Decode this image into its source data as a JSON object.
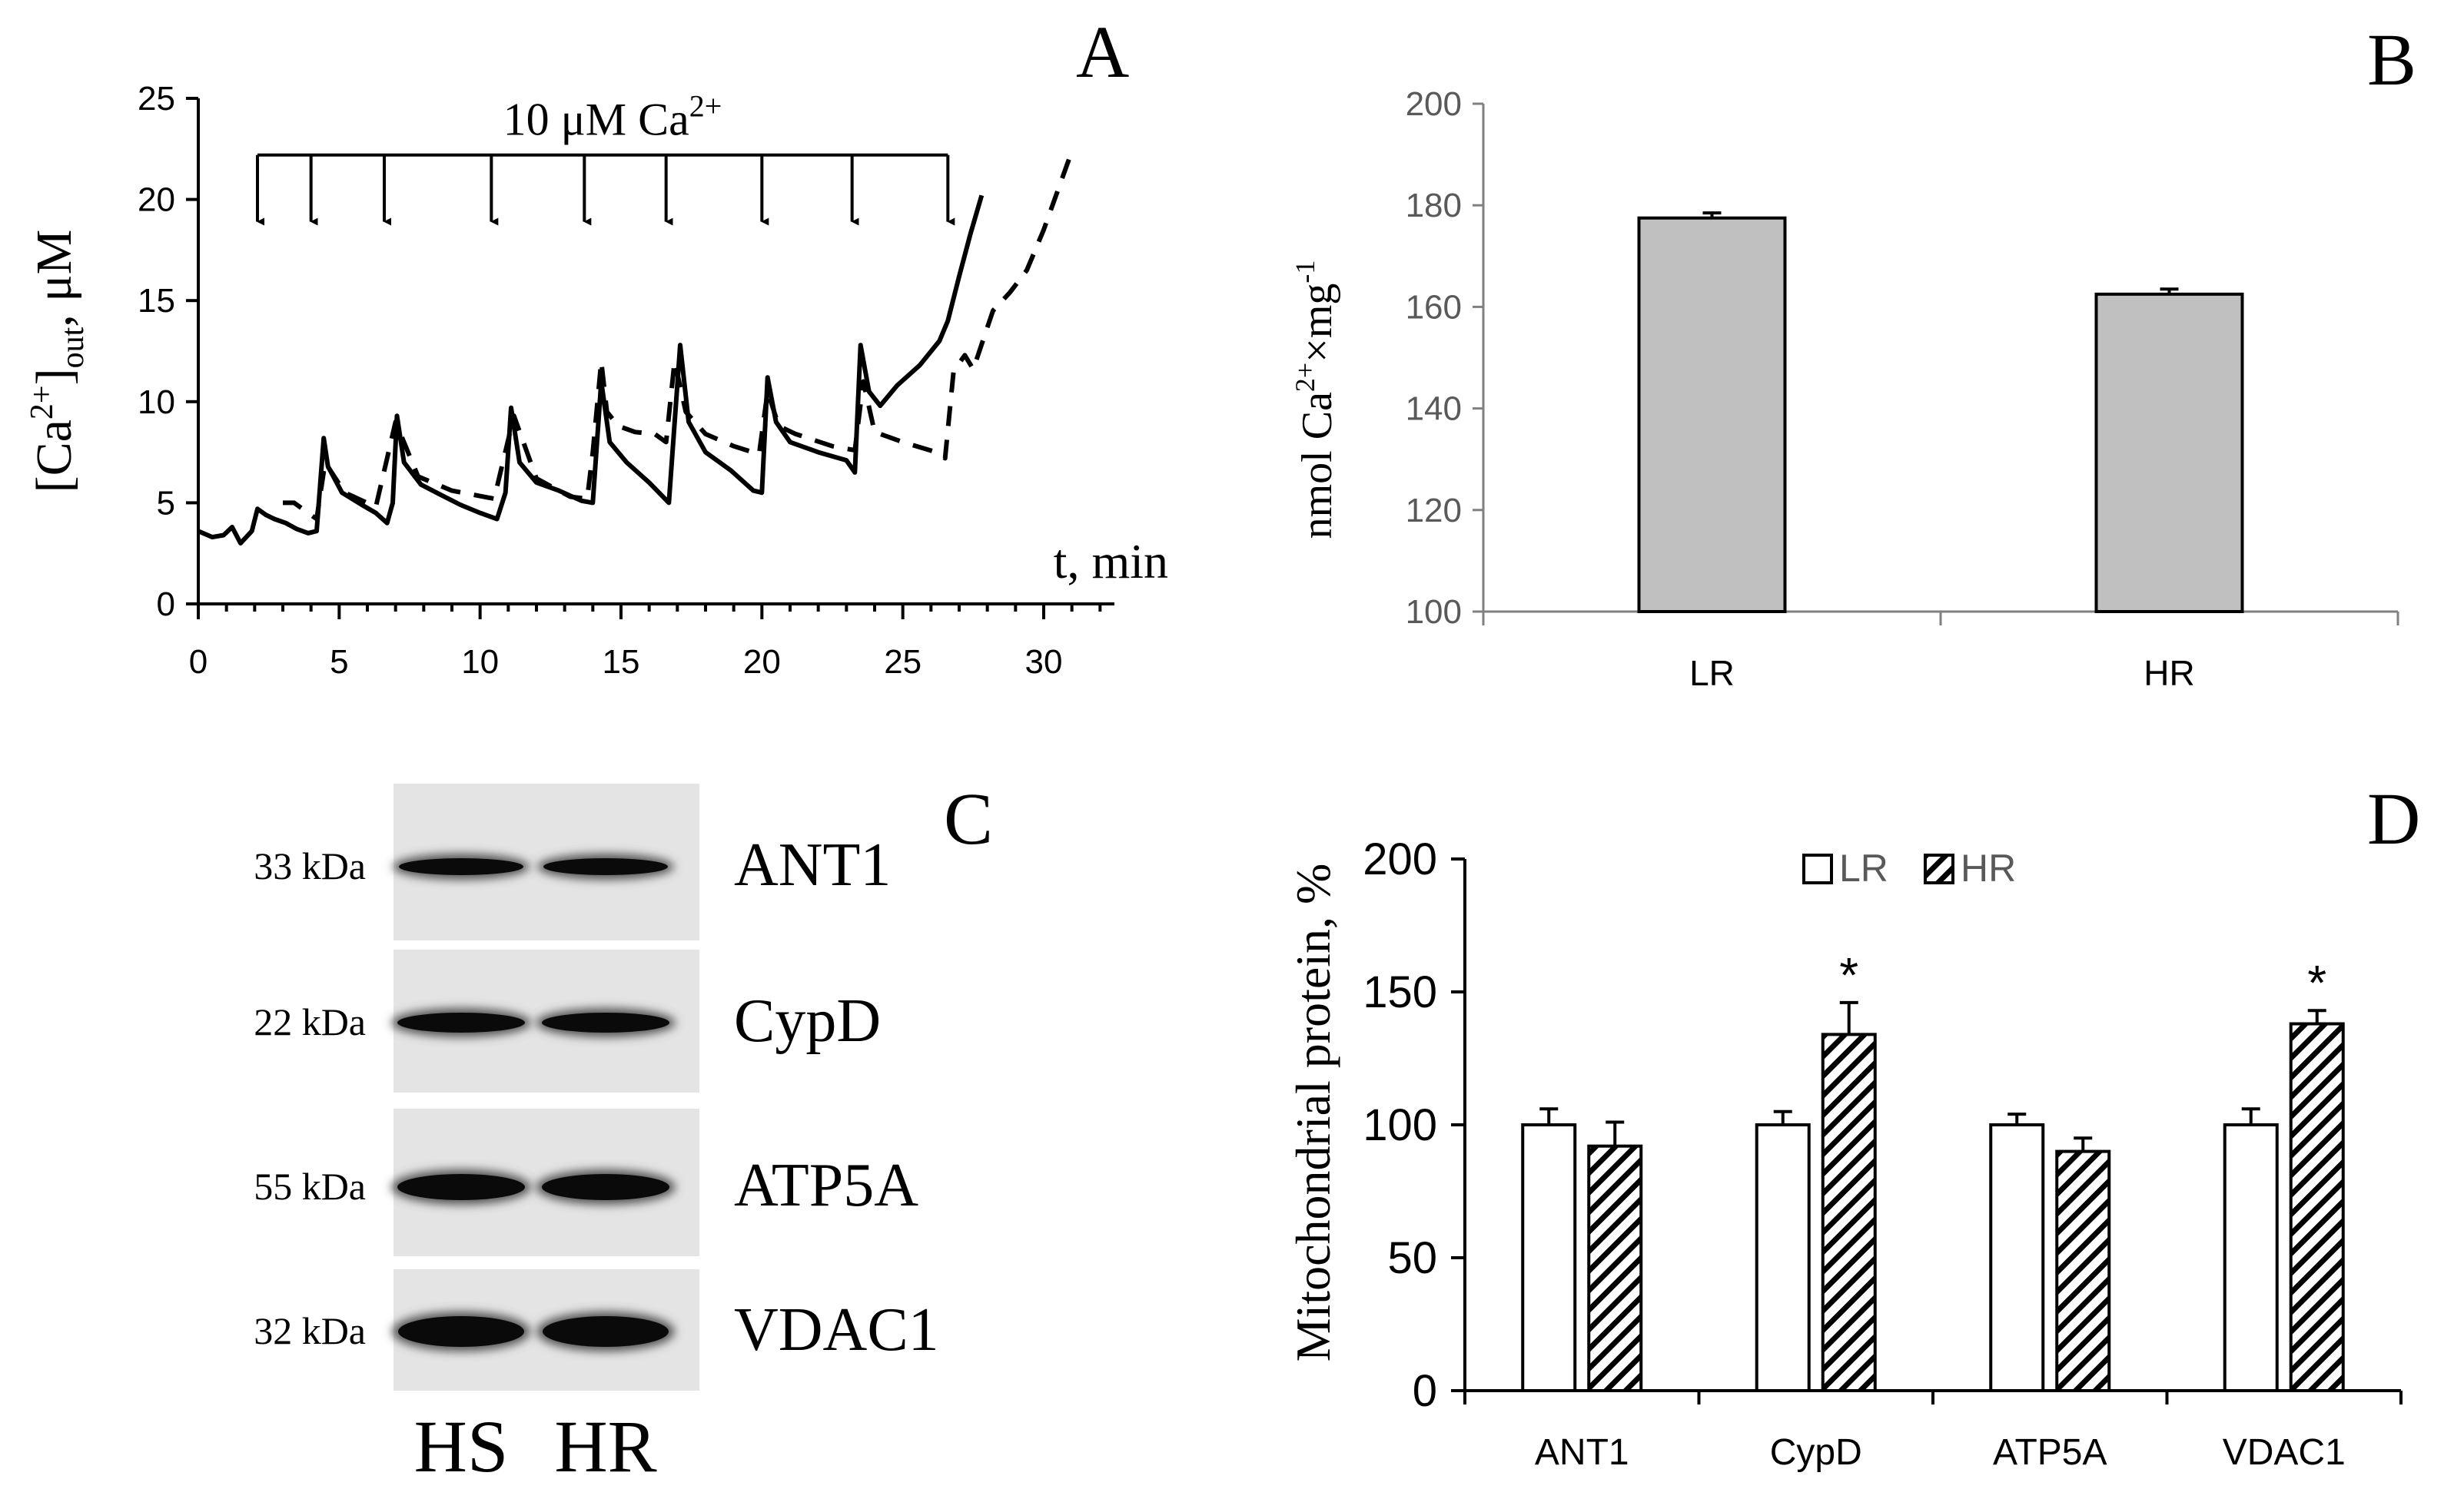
{
  "chart_data": [
    {
      "panel": "A",
      "type": "line",
      "title": "",
      "xlabel": "t, min",
      "ylabel_main": "[Ca",
      "ylabel_sup": "2+",
      "ylabel_close": "]",
      "ylabel_sub": "out",
      "ylabel_unit": ", μM",
      "xlim": [
        0,
        32
      ],
      "ylim": [
        0,
        25
      ],
      "x_ticks": [
        "0",
        "5",
        "10",
        "15",
        "20",
        "25",
        "30"
      ],
      "x_tick_values": [
        0,
        5,
        10,
        15,
        20,
        25,
        30
      ],
      "y_ticks": [
        "0",
        "5",
        "10",
        "15",
        "20",
        "25"
      ],
      "y_tick_values": [
        0,
        5,
        10,
        15,
        20,
        25
      ],
      "annotation": {
        "text": "10 μM Ca",
        "sup": "2+",
        "arrow_times_min": [
          2.1,
          4.0,
          6.6,
          10.4,
          13.7,
          16.6,
          20.0,
          23.2,
          26.6
        ]
      },
      "series": [
        {
          "name": "solid",
          "style": "solid",
          "points": [
            [
              0.0,
              3.6
            ],
            [
              0.5,
              3.3
            ],
            [
              0.9,
              3.4
            ],
            [
              1.2,
              3.8
            ],
            [
              1.5,
              3.0
            ],
            [
              1.9,
              3.6
            ],
            [
              2.1,
              4.7
            ],
            [
              2.4,
              4.4
            ],
            [
              2.7,
              4.2
            ],
            [
              3.1,
              4.0
            ],
            [
              3.5,
              3.7
            ],
            [
              3.9,
              3.5
            ],
            [
              4.2,
              3.6
            ],
            [
              4.45,
              8.2
            ],
            [
              4.6,
              6.8
            ],
            [
              5.1,
              5.5
            ],
            [
              5.8,
              4.9
            ],
            [
              6.3,
              4.5
            ],
            [
              6.7,
              4.0
            ],
            [
              6.9,
              5.0
            ],
            [
              7.05,
              9.3
            ],
            [
              7.3,
              7.0
            ],
            [
              7.9,
              5.9
            ],
            [
              8.6,
              5.4
            ],
            [
              9.3,
              4.9
            ],
            [
              10.0,
              4.5
            ],
            [
              10.6,
              4.2
            ],
            [
              10.9,
              5.5
            ],
            [
              11.1,
              9.7
            ],
            [
              11.4,
              7.0
            ],
            [
              12.0,
              6.0
            ],
            [
              12.8,
              5.6
            ],
            [
              13.6,
              5.1
            ],
            [
              14.0,
              5.0
            ],
            [
              14.3,
              11.0
            ],
            [
              14.6,
              8.0
            ],
            [
              15.2,
              7.0
            ],
            [
              16.0,
              6.0
            ],
            [
              16.7,
              5.0
            ],
            [
              17.1,
              12.8
            ],
            [
              17.4,
              9.0
            ],
            [
              18.0,
              7.5
            ],
            [
              18.9,
              6.6
            ],
            [
              19.7,
              5.6
            ],
            [
              20.0,
              5.5
            ],
            [
              20.2,
              11.2
            ],
            [
              20.5,
              9.0
            ],
            [
              21.0,
              8.0
            ],
            [
              22.0,
              7.5
            ],
            [
              23.0,
              7.1
            ],
            [
              23.3,
              6.5
            ],
            [
              23.5,
              12.8
            ],
            [
              23.8,
              10.5
            ],
            [
              24.2,
              9.8
            ],
            [
              24.8,
              10.8
            ],
            [
              25.6,
              11.8
            ],
            [
              26.3,
              13.0
            ],
            [
              26.6,
              14.0
            ],
            [
              27.0,
              16.2
            ],
            [
              27.4,
              18.3
            ],
            [
              27.8,
              20.2
            ]
          ]
        },
        {
          "name": "dashed",
          "style": "dashed",
          "points": [
            [
              3.0,
              5.0
            ],
            [
              3.4,
              5.0
            ],
            [
              4.2,
              4.2
            ],
            [
              4.5,
              7.0
            ],
            [
              5.2,
              5.5
            ],
            [
              6.3,
              4.8
            ],
            [
              7.0,
              9.0
            ],
            [
              7.8,
              6.3
            ],
            [
              9.0,
              5.6
            ],
            [
              10.5,
              5.2
            ],
            [
              11.2,
              9.3
            ],
            [
              12.0,
              6.2
            ],
            [
              13.2,
              5.3
            ],
            [
              13.8,
              5.2
            ],
            [
              14.0,
              7.5
            ],
            [
              14.3,
              12.0
            ],
            [
              14.5,
              9.5
            ],
            [
              14.9,
              8.8
            ],
            [
              15.5,
              8.5
            ],
            [
              16.2,
              8.4
            ],
            [
              16.6,
              8.0
            ],
            [
              16.9,
              12.0
            ],
            [
              17.3,
              9.5
            ],
            [
              18.0,
              8.4
            ],
            [
              19.0,
              7.8
            ],
            [
              19.9,
              7.4
            ],
            [
              20.2,
              10.5
            ],
            [
              20.6,
              8.8
            ],
            [
              21.2,
              8.4
            ],
            [
              22.5,
              7.8
            ],
            [
              23.3,
              7.6
            ],
            [
              23.6,
              11.0
            ],
            [
              24.0,
              8.5
            ],
            [
              25.0,
              8.0
            ],
            [
              26.2,
              7.5
            ],
            [
              26.5,
              7.2
            ],
            [
              26.8,
              11.5
            ],
            [
              27.2,
              12.3
            ],
            [
              27.5,
              11.6
            ],
            [
              28.2,
              14.5
            ],
            [
              28.8,
              15.4
            ],
            [
              29.4,
              16.5
            ],
            [
              30.0,
              18.5
            ],
            [
              30.9,
              22.0
            ]
          ]
        }
      ]
    },
    {
      "panel": "B",
      "type": "bar",
      "ylabel_main": "nmol Ca",
      "ylabel_sup": "2+",
      "ylabel_mid": "×mg",
      "ylabel_sup2": "-1",
      "categories": [
        "LR",
        "HR"
      ],
      "values": [
        177.5,
        162.5
      ],
      "errors": [
        1.0,
        1.0
      ],
      "ylim": [
        100,
        200
      ],
      "y_ticks": [
        "100",
        "120",
        "140",
        "160",
        "180",
        "200"
      ],
      "y_tick_values": [
        100,
        120,
        140,
        160,
        180,
        200
      ],
      "bar_color": "#c0c0c0"
    },
    {
      "panel": "D",
      "type": "bar",
      "ylabel": "Mitochondrial protein, %",
      "categories": [
        "ANT1",
        "CypD",
        "ATP5A",
        "VDAC1"
      ],
      "series": [
        {
          "name": "LR",
          "values": [
            100,
            100,
            100,
            100
          ],
          "errors": [
            6,
            5,
            4,
            6
          ],
          "fill": "white"
        },
        {
          "name": "HR",
          "values": [
            92,
            134,
            90,
            138
          ],
          "errors": [
            9,
            12,
            5,
            5
          ],
          "fill": "hatched"
        }
      ],
      "significance": [
        "",
        "*",
        "",
        "*"
      ],
      "ylim": [
        0,
        200
      ],
      "y_ticks": [
        "0",
        "50",
        "100",
        "150",
        "200"
      ],
      "y_tick_values": [
        0,
        50,
        100,
        150,
        200
      ]
    }
  ],
  "panel_labels": {
    "a": "A",
    "b": "B",
    "c": "C",
    "d": "D"
  },
  "blot": {
    "rows": [
      {
        "kda": "33 kDa",
        "protein": "ANT1"
      },
      {
        "kda": "22 kDa",
        "protein": "CypD"
      },
      {
        "kda": "55 kDa",
        "protein": "ATP5A"
      },
      {
        "kda": "32 kDa",
        "protein": "VDAC1"
      }
    ],
    "lanes": [
      "HS",
      "HR"
    ]
  }
}
